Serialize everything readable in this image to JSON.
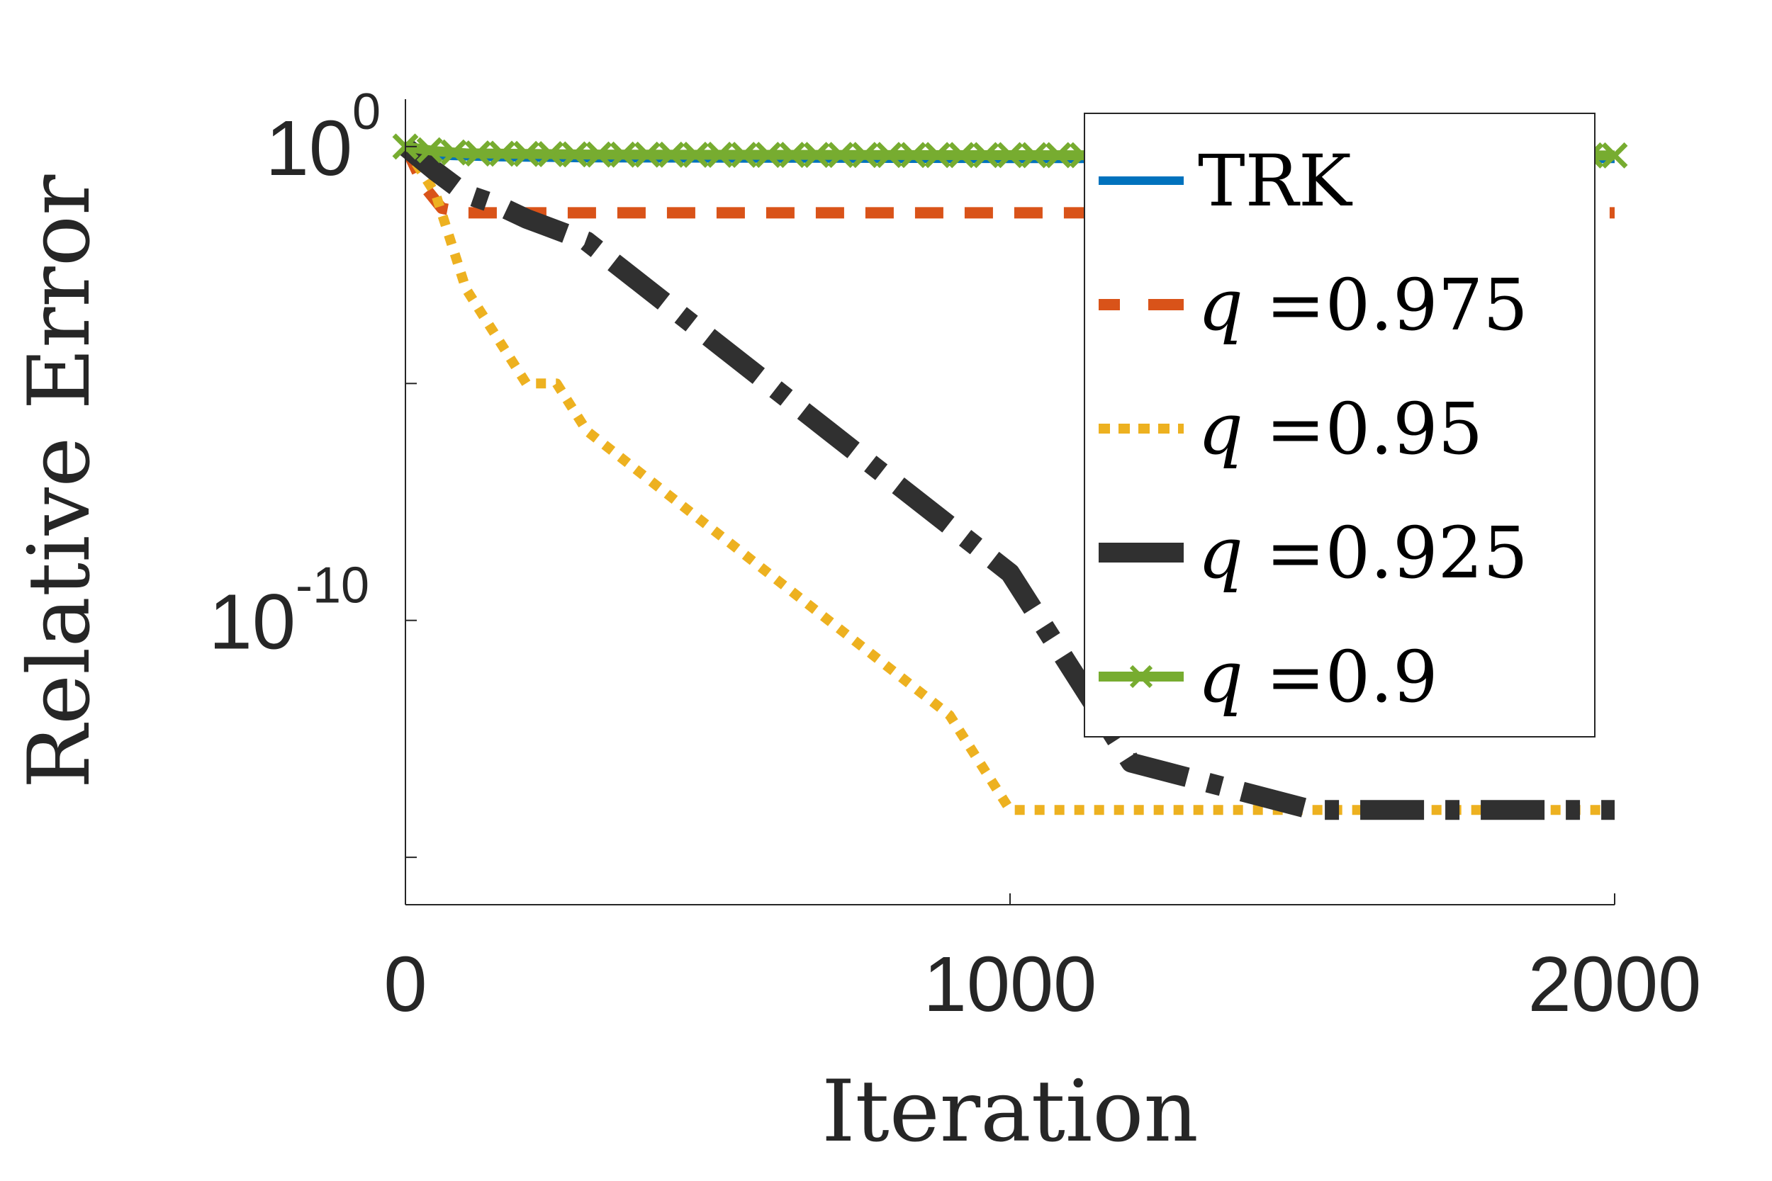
{
  "chart_data": {
    "type": "line",
    "title": "",
    "xlabel": "Iteration",
    "ylabel": "Relative Error",
    "xlim": [
      0,
      2000
    ],
    "ylim": [
      1e-16,
      10.0
    ],
    "y_scale": "log",
    "grid": false,
    "legend_position": "top-right",
    "x_ticks": [
      {
        "value": 0,
        "label": "0"
      },
      {
        "value": 1000,
        "label": "1000"
      },
      {
        "value": 2000,
        "label": "2000"
      }
    ],
    "y_ticks": [
      {
        "value": 1,
        "base": "10",
        "exp": "0"
      },
      {
        "value": 1e-10,
        "base": "10",
        "exp": "-10"
      }
    ],
    "series": [
      {
        "name": "TRK",
        "legend_prefix": "",
        "legend_value": "TRK",
        "color": "#0072bd",
        "style": "solid",
        "x": [
          0,
          50,
          150,
          300,
          600,
          1000,
          1500,
          2000
        ],
        "y": [
          1,
          0.65,
          0.6,
          0.57,
          0.56,
          0.55,
          0.55,
          0.55
        ]
      },
      {
        "name": "q =0.975",
        "legend_prefix": "q",
        "legend_value": "=0.975",
        "color": "#d95319",
        "style": "dashed",
        "x": [
          0,
          30,
          60,
          100,
          200,
          500,
          1000,
          1500,
          2000
        ],
        "y": [
          1,
          0.15,
          0.05,
          0.04,
          0.04,
          0.04,
          0.04,
          0.04,
          0.04
        ]
      },
      {
        "name": "q =0.95",
        "legend_prefix": "q",
        "legend_value": "=0.95",
        "color": "#edb120",
        "style": "dotted",
        "x": [
          0,
          50,
          100,
          150,
          200,
          250,
          300,
          400,
          500,
          600,
          700,
          800,
          900,
          950,
          1000,
          1050,
          1100,
          1500,
          2000
        ],
        "y": [
          1,
          0.1,
          0.001,
          0.0001,
          1e-05,
          1e-05,
          1e-06,
          1e-07,
          1e-08,
          1e-09,
          1e-10,
          1e-11,
          1e-12,
          1e-13,
          1e-14,
          1e-14,
          1e-14,
          1e-14,
          1e-14
        ]
      },
      {
        "name": "q =0.925",
        "legend_prefix": "q",
        "legend_value": "=0.925",
        "color": "#303030",
        "style": "dashdot",
        "x": [
          0,
          50,
          100,
          150,
          200,
          300,
          400,
          500,
          600,
          700,
          800,
          900,
          1000,
          1050,
          1100,
          1150,
          1200,
          1500,
          2000
        ],
        "y": [
          1,
          0.3,
          0.1,
          0.06,
          0.03,
          0.01,
          0.001,
          0.0001,
          1e-05,
          1e-06,
          1e-07,
          1e-08,
          1e-09,
          1e-10,
          1e-11,
          1e-12,
          1e-13,
          1e-14,
          1e-14
        ]
      },
      {
        "name": "q =0.9",
        "legend_prefix": "q",
        "legend_value": "=0.9",
        "color": "#77ac30",
        "style": "solid-x",
        "x": [
          0,
          50,
          100,
          200,
          300,
          500,
          1000,
          1500,
          2000
        ],
        "y": [
          1,
          0.8,
          0.72,
          0.7,
          0.68,
          0.67,
          0.66,
          0.65,
          0.65
        ]
      }
    ]
  }
}
